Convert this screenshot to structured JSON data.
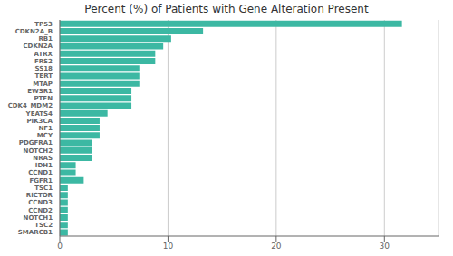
{
  "chart_data": {
    "type": "bar",
    "orientation": "horizontal",
    "title": "Percent (%) of Patients with Gene Alteration Present",
    "categories": [
      "SMARCB1",
      "TSC2",
      "NOTCH1",
      "CCND2",
      "CCND3",
      "RICTOR",
      "TSC1",
      "FGFR1",
      "CCND1",
      "IDH1",
      "NRAS",
      "NOTCH2",
      "PDGFRA1",
      "MCY",
      "NF1",
      "PIK3CA",
      "YEATS4",
      "CDK4_MDM2",
      "PTEN",
      "EWSR1",
      "MTAP",
      "TERT",
      "SS18",
      "FRS2",
      "ATRX",
      "CDKN2A",
      "RB1",
      "CDKN2A_B",
      "TP53"
    ],
    "values": [
      0.74,
      0.74,
      0.74,
      0.74,
      0.74,
      0.74,
      0.74,
      2.21,
      1.47,
      1.47,
      2.94,
      2.94,
      2.94,
      3.68,
      3.68,
      3.68,
      4.41,
      6.62,
      6.62,
      6.62,
      7.35,
      7.35,
      7.35,
      8.82,
      8.82,
      9.56,
      10.29,
      13.24,
      31.62
    ],
    "color": "#3cb8a3",
    "xlim": [
      0,
      35
    ],
    "xticks": [
      0,
      10,
      20,
      30
    ],
    "grid": true
  }
}
